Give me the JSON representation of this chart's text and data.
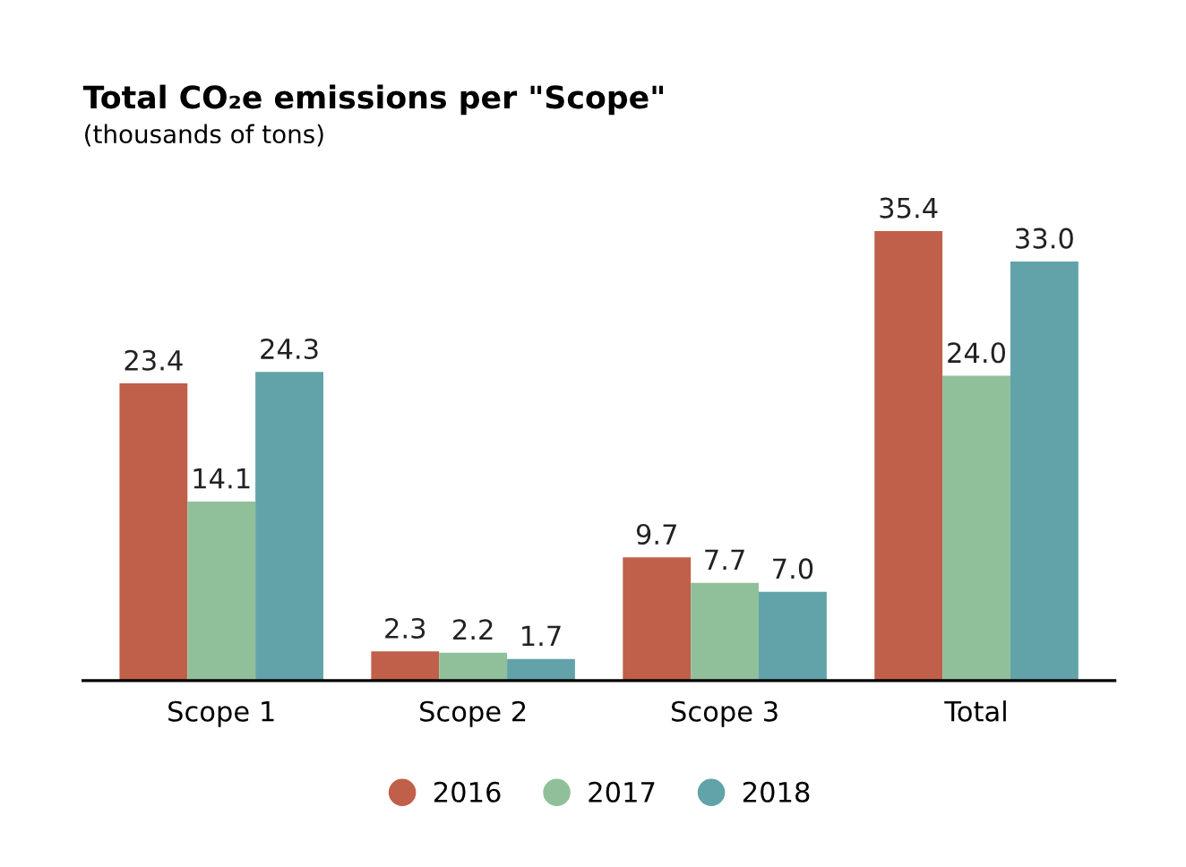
{
  "chart_data": {
    "type": "bar",
    "title": "Total CO₂e emissions per \"Scope\"",
    "subtitle": "(thousands of tons)",
    "categories": [
      "Scope 1",
      "Scope 2",
      "Scope 3",
      "Total"
    ],
    "series": [
      {
        "name": "2016",
        "color": "#c0604a",
        "values": [
          23.4,
          2.3,
          9.7,
          35.4
        ],
        "value_labels": [
          "23.4",
          "2.3",
          "9.7",
          "35.4"
        ]
      },
      {
        "name": "2017",
        "color": "#90c09a",
        "values": [
          14.1,
          2.2,
          7.7,
          24.0
        ],
        "value_labels": [
          "14.1",
          "2.2",
          "7.7",
          "24.0"
        ]
      },
      {
        "name": "2018",
        "color": "#62a3aa",
        "values": [
          24.3,
          1.7,
          7.0,
          33.0
        ],
        "value_labels": [
          "24.3",
          "1.7",
          "7.0",
          "33.0"
        ]
      }
    ],
    "legend": "bottom",
    "grid": false
  }
}
